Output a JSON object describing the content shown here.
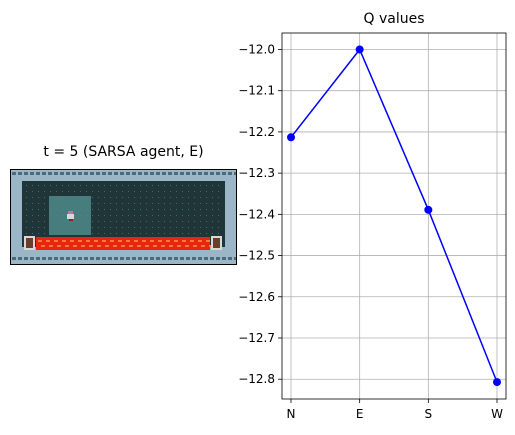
{
  "left_panel": {
    "title": "t = 5 (SARSA agent, E)"
  },
  "game_view": {
    "colors": {
      "frame": "#9bb7c7",
      "frame_dark": "#4b6b7c",
      "floor": "#1f3538",
      "floor_dot": "#3c6e70",
      "highlight": "#4f8a88",
      "lava": "#e8250f",
      "lava_light": "#ff7a3a",
      "pillar": "#6b3d2a",
      "agent": "#c86fb4"
    },
    "icons": [
      "agent-icon",
      "lava-row",
      "pillar-icon"
    ]
  },
  "chart_data": {
    "type": "line",
    "title": "Q values",
    "xlabel": "",
    "ylabel": "",
    "categories": [
      "N",
      "E",
      "S",
      "W"
    ],
    "series": [
      {
        "values": [
          -12.213,
          -12.0,
          -12.389,
          -12.807
        ],
        "color": "#0000ff"
      }
    ],
    "yticks": [
      -12.0,
      -12.1,
      -12.2,
      -12.3,
      -12.4,
      -12.5,
      -12.6,
      -12.7,
      -12.8
    ],
    "ytick_labels": [
      "−12.0",
      "−12.1",
      "−12.2",
      "−12.3",
      "−12.4",
      "−12.5",
      "−12.6",
      "−12.7",
      "−12.8"
    ],
    "ylim": [
      -12.848,
      -11.96
    ],
    "grid": true,
    "legend": "none"
  }
}
